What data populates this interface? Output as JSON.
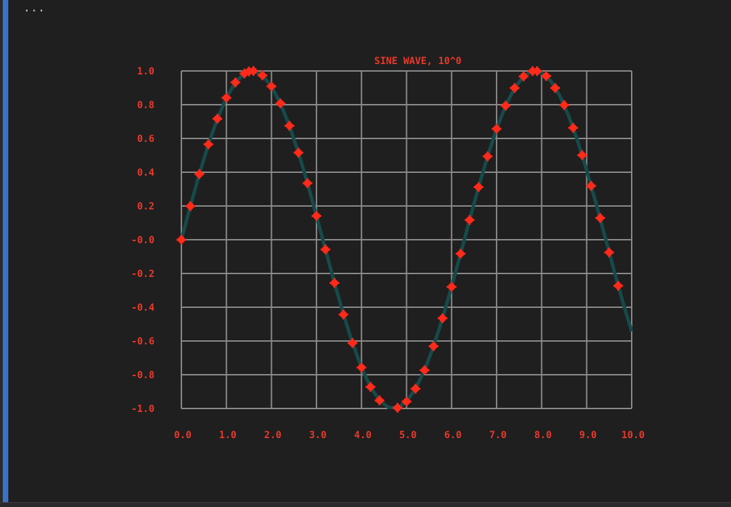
{
  "cell": {
    "more_label": "···"
  },
  "colors": {
    "background": "#1f1f1f",
    "accent_bar": "#3a72c7",
    "grid": "#8a8a8a",
    "line": "#174a4a",
    "marker": "#ff2a1a",
    "text": "#e8392a"
  },
  "chart_data": {
    "type": "line",
    "title": "SINE WAVE, 10^0",
    "xlabel": "",
    "ylabel": "",
    "xlim": [
      0,
      10
    ],
    "ylim": [
      -1,
      1
    ],
    "grid": true,
    "x_ticks": [
      0,
      1,
      2,
      3,
      4,
      5,
      6,
      7,
      8,
      9,
      10
    ],
    "x_tick_labels": [
      "0.0",
      "1.0",
      "2.0",
      "3.0",
      "4.0",
      "5.0",
      "6.0",
      "7.0",
      "8.0",
      "9.0",
      "10.0"
    ],
    "y_ticks": [
      1.0,
      0.8,
      0.6,
      0.4,
      0.2,
      0.0,
      -0.2,
      -0.4,
      -0.6,
      -0.8,
      -1.0
    ],
    "y_tick_labels": [
      "1.0",
      "0.8",
      "0.6",
      "0.4",
      "0.2",
      "-0.0",
      "-0.2",
      "-0.4",
      "-0.6",
      "-0.8",
      "-1.0"
    ],
    "series": [
      {
        "function": "sin(x)",
        "x": [
          0.0,
          0.2,
          0.4,
          0.6,
          0.8,
          1.0,
          1.2,
          1.4,
          1.6,
          1.8,
          2.0,
          2.2,
          2.4,
          2.6,
          2.8,
          3.0,
          3.2,
          3.4,
          3.6,
          3.8,
          4.0,
          4.2,
          4.4,
          4.6,
          4.8,
          5.0,
          5.2,
          5.4,
          5.6,
          5.8,
          6.0,
          6.2,
          6.4,
          6.6,
          6.8,
          7.0,
          7.2,
          7.4,
          7.6,
          7.8,
          8.0,
          8.2,
          8.4,
          8.6,
          8.8,
          9.0,
          9.2,
          9.4,
          9.6,
          9.8,
          10.0
        ],
        "y": [
          0.0,
          0.199,
          0.389,
          0.565,
          0.717,
          0.841,
          0.932,
          0.985,
          1.0,
          0.974,
          0.909,
          0.808,
          0.675,
          0.516,
          0.335,
          0.141,
          -0.058,
          -0.256,
          -0.443,
          -0.612,
          -0.757,
          -0.872,
          -0.952,
          -0.994,
          -0.996,
          -0.959,
          -0.883,
          -0.773,
          -0.631,
          -0.465,
          -0.279,
          -0.083,
          0.117,
          0.312,
          0.494,
          0.657,
          0.794,
          0.899,
          0.968,
          0.999,
          0.989,
          0.941,
          0.855,
          0.734,
          0.585,
          0.412,
          0.223,
          0.025,
          -0.174,
          -0.366,
          -0.544
        ],
        "markers": {
          "x": [
            0.0,
            0.2,
            0.4,
            0.6,
            0.8,
            1.0,
            1.2,
            1.4,
            1.5,
            1.6,
            1.8,
            2.0,
            2.2,
            2.4,
            2.6,
            2.8,
            3.0,
            3.2,
            3.4,
            3.6,
            3.8,
            4.0,
            4.2,
            4.4,
            4.8,
            5.0,
            5.2,
            5.4,
            5.6,
            5.8,
            6.0,
            6.2,
            6.4,
            6.6,
            6.8,
            7.0,
            7.2,
            7.4,
            7.6,
            7.8,
            7.9,
            8.1,
            8.3,
            8.5,
            8.7,
            8.9,
            9.1,
            9.3,
            9.5,
            9.7
          ],
          "y": [
            0.0,
            0.199,
            0.389,
            0.565,
            0.717,
            0.841,
            0.932,
            0.985,
            0.997,
            1.0,
            0.974,
            0.909,
            0.808,
            0.675,
            0.516,
            0.335,
            0.141,
            -0.058,
            -0.256,
            -0.443,
            -0.612,
            -0.757,
            -0.872,
            -0.952,
            -0.996,
            -0.959,
            -0.883,
            -0.773,
            -0.631,
            -0.465,
            -0.279,
            -0.083,
            0.117,
            0.312,
            0.494,
            0.657,
            0.794,
            0.899,
            0.968,
            0.999,
            0.999,
            0.97,
            0.899,
            0.798,
            0.663,
            0.501,
            0.319,
            0.129,
            -0.075,
            -0.273
          ]
        }
      }
    ]
  }
}
